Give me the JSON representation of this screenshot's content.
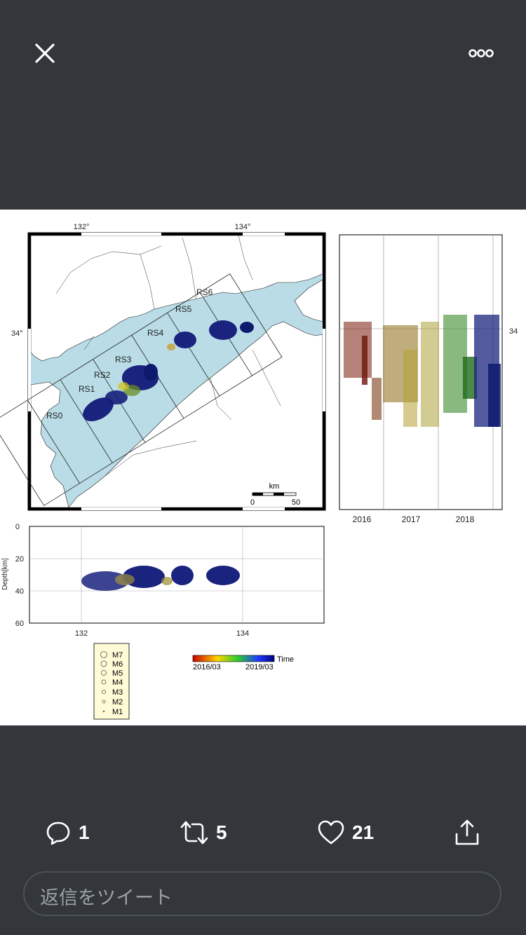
{
  "header": {
    "close_icon": "close-icon",
    "more_icon": "more-options-icon"
  },
  "figure": {
    "map": {
      "lon_ticks": [
        "132°",
        "134°"
      ],
      "lat_tick_left": "34°",
      "regions": [
        "RS0",
        "RS1",
        "RS2",
        "RS3",
        "RS4",
        "RS5",
        "RS6"
      ],
      "scale_unit": "km",
      "scale_ticks": [
        "0",
        "50"
      ]
    },
    "time_panel": {
      "right_label": "34",
      "years": [
        "2016",
        "2017",
        "2018"
      ]
    },
    "depth_panel": {
      "ylabel": "Depth[km]",
      "y_ticks": [
        "0",
        "20",
        "40",
        "60"
      ],
      "x_ticks": [
        "132",
        "134"
      ]
    },
    "magnitude_legend": [
      "M7",
      "M6",
      "M5",
      "M4",
      "M3",
      "M2",
      "M1"
    ],
    "colorbar": {
      "label": "Time",
      "start": "2016/03",
      "end": "2019/03",
      "colors": [
        "#c80000",
        "#ffd400",
        "#2ecc2e",
        "#1e3cff",
        "#000080"
      ]
    }
  },
  "actions": {
    "reply": {
      "icon": "reply-icon",
      "count": "1"
    },
    "retweet": {
      "icon": "retweet-icon",
      "count": "5"
    },
    "like": {
      "icon": "heart-icon",
      "count": "21"
    },
    "share": {
      "icon": "share-icon"
    }
  },
  "reply_input": {
    "placeholder": "返信をツイート"
  }
}
